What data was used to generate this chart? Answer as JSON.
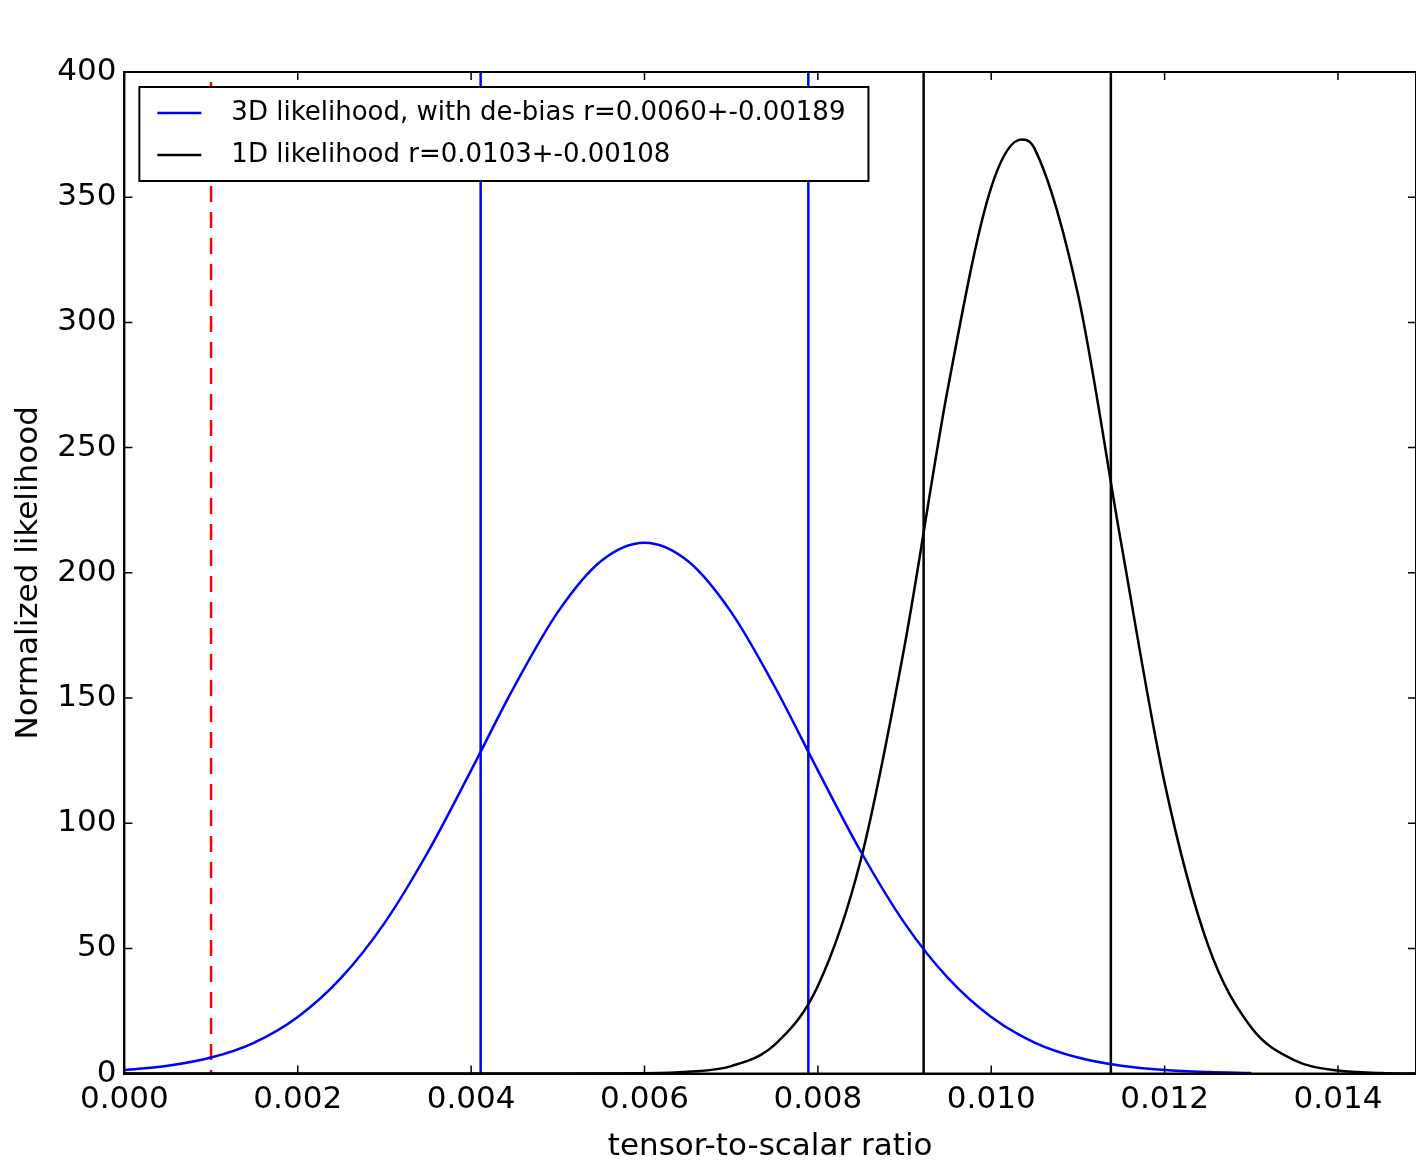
{
  "chart_data": {
    "type": "line",
    "xlabel": "tensor-to-scalar ratio",
    "ylabel": "Normalized likelihood",
    "xlim": [
      0,
      0.0149
    ],
    "ylim": [
      0,
      400
    ],
    "xticks": [
      {
        "value": 0,
        "label": "0.000"
      },
      {
        "value": 0.002,
        "label": "0.002"
      },
      {
        "value": 0.004,
        "label": "0.004"
      },
      {
        "value": 0.006,
        "label": "0.006"
      },
      {
        "value": 0.008,
        "label": "0.008"
      },
      {
        "value": 0.01,
        "label": "0.010"
      },
      {
        "value": 0.012,
        "label": "0.012"
      },
      {
        "value": 0.014,
        "label": "0.014"
      }
    ],
    "yticks": [
      0,
      50,
      100,
      150,
      200,
      250,
      300,
      350,
      400
    ],
    "grid": false,
    "legend": "top left",
    "marker": "none",
    "line_style": "solid",
    "series": [
      {
        "name": "3D likelihood, with de-bias r=0.0060+-0.00189",
        "color": "#0000ff",
        "x": [
          0,
          0.0005,
          0.001,
          0.0015,
          0.002,
          0.0025,
          0.003,
          0.0035,
          0.004,
          0.0045,
          0.005,
          0.0055,
          0.006,
          0.0065,
          0.007,
          0.0075,
          0.008,
          0.0085,
          0.009,
          0.0095,
          0.01,
          0.0105,
          0.011,
          0.0115,
          0.012,
          0.0125,
          0.013
        ],
        "values": [
          1.4,
          3.1,
          6.4,
          12.4,
          22.6,
          38.2,
          60.1,
          88.4,
          121.1,
          154.7,
          184.3,
          204.7,
          212,
          204.7,
          184.3,
          154.7,
          121.1,
          88.4,
          60.1,
          38.2,
          22.6,
          12.4,
          6.4,
          3.1,
          1.4,
          0.6,
          0.2
        ]
      },
      {
        "name": "1D likelihood r=0.0103+-0.00108",
        "color": "#000000",
        "x": [
          0,
          0.005,
          0.006,
          0.0065,
          0.007,
          0.0075,
          0.008,
          0.0085,
          0.009,
          0.0095,
          0.01,
          0.01035,
          0.0105,
          0.011,
          0.0115,
          0.012,
          0.0125,
          0.013,
          0.0135,
          0.014,
          0.0145,
          0.0149
        ],
        "values": [
          0,
          0,
          0.1,
          0.7,
          3,
          11.5,
          35,
          86,
          170.8,
          273.7,
          353.9,
          373,
          369.4,
          311.2,
          211.6,
          116.1,
          51.4,
          18.4,
          5.3,
          1.2,
          0.2,
          0
        ]
      }
    ],
    "ref_lines": [
      {
        "axis": "x",
        "value": 0.001,
        "color": "#ff0000",
        "line_style": "dashed"
      },
      {
        "axis": "x",
        "value": 0.00411,
        "color": "#0000ff",
        "line_style": "solid"
      },
      {
        "axis": "x",
        "value": 0.00789,
        "color": "#0000ff",
        "line_style": "solid"
      },
      {
        "axis": "x",
        "value": 0.00922,
        "color": "#000000",
        "line_style": "solid"
      },
      {
        "axis": "x",
        "value": 0.01138,
        "color": "#000000",
        "line_style": "solid"
      }
    ]
  }
}
